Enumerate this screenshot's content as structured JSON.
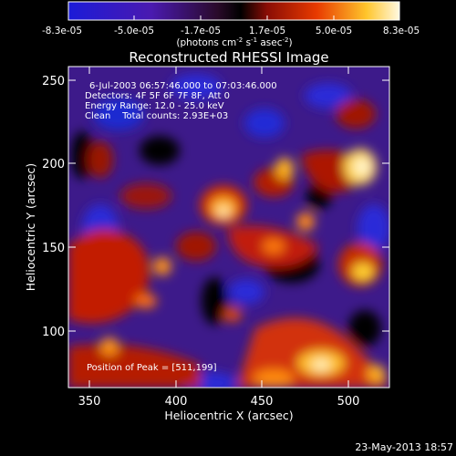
{
  "colorbar": {
    "ticks": [
      "-8.3e-05",
      "-5.0e-05",
      "-1.7e-05",
      "1.7e-05",
      "5.0e-05",
      "8.3e-05"
    ],
    "units_prefix": "(photons cm",
    "units_exp1": "-2",
    "units_mid": " s",
    "units_exp2": "-1",
    "units_mid2": " asec",
    "units_exp3": "-2",
    "units_suffix": ")"
  },
  "title": "Reconstructed RHESSI Image",
  "info": {
    "time_range": "6-Jul-2003 06:57:46.000 to 07:03:46.000",
    "detectors": "Detectors: 4F 5F 6F 7F 8F, Att 0",
    "energy": "Energy Range: 12.0 - 25.0 keV",
    "clean": "Clean    Total counts: 2.93E+03",
    "peak": "Position of Peak = [511,199]"
  },
  "axes": {
    "xlabel": "Heliocentric X (arcsec)",
    "ylabel": "Heliocentric Y (arcsec)",
    "xticks": [
      "350",
      "400",
      "450",
      "500"
    ],
    "yticks": [
      "100",
      "150",
      "200",
      "250"
    ]
  },
  "footer_timestamp": "23-May-2013 18:57"
}
